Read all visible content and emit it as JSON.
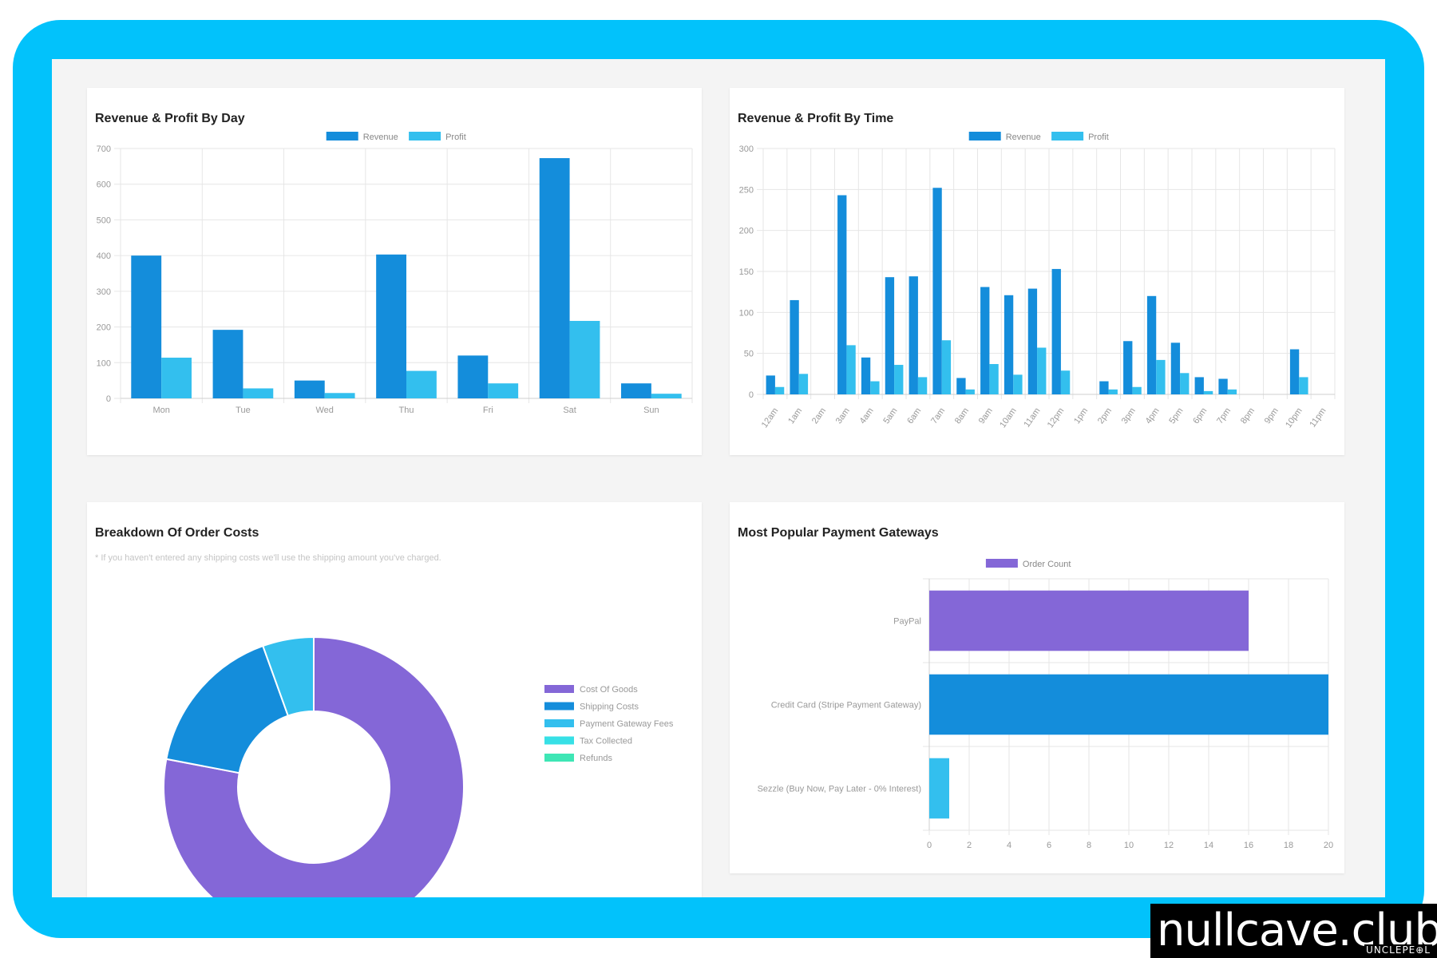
{
  "colors": {
    "frame": "#02c2fb",
    "revenue": "#148ddb",
    "profit": "#33bfee",
    "cost_of_goods": "#8467d7",
    "shipping_costs": "#148ddb",
    "payment_gateway_fees": "#33bfee",
    "tax_collected": "#37e0e6",
    "refunds": "#3ee6b5",
    "paypal": "#8467d7",
    "credit_card": "#148ddb",
    "sezzle": "#33bfee"
  },
  "watermark": {
    "text": "nullcave.club",
    "subtext": "UNCLEPE⊕L"
  },
  "cards": {
    "by_day": {
      "title": "Revenue & Profit By Day"
    },
    "by_time": {
      "title": "Revenue & Profit By Time"
    },
    "order_costs": {
      "title": "Breakdown Of Order Costs",
      "note": "* If you haven't entered any shipping costs we'll use the shipping amount you've charged."
    },
    "gateways": {
      "title": "Most Popular Payment Gateways"
    }
  },
  "chart_data": [
    {
      "id": "by_day",
      "type": "bar",
      "title": "Revenue & Profit By Day",
      "categories": [
        "Mon",
        "Tue",
        "Wed",
        "Thu",
        "Fri",
        "Sat",
        "Sun"
      ],
      "series": [
        {
          "name": "Revenue",
          "values": [
            400,
            192,
            50,
            403,
            120,
            673,
            42
          ]
        },
        {
          "name": "Profit",
          "values": [
            114,
            28,
            15,
            77,
            42,
            217,
            13
          ]
        }
      ],
      "ylim": [
        0,
        700
      ],
      "yticks": [
        0,
        100,
        200,
        300,
        400,
        500,
        600,
        700
      ],
      "legend": "top-center",
      "grid": true
    },
    {
      "id": "by_time",
      "type": "bar",
      "title": "Revenue & Profit By Time",
      "categories": [
        "12am",
        "1am",
        "2am",
        "3am",
        "4am",
        "5am",
        "6am",
        "7am",
        "8am",
        "9am",
        "10am",
        "11am",
        "12pm",
        "1pm",
        "2pm",
        "3pm",
        "4pm",
        "5pm",
        "6pm",
        "7pm",
        "8pm",
        "9pm",
        "10pm",
        "11pm"
      ],
      "series": [
        {
          "name": "Revenue",
          "values": [
            23,
            115,
            0,
            243,
            45,
            143,
            144,
            252,
            20,
            131,
            121,
            129,
            153,
            0,
            16,
            65,
            120,
            63,
            21,
            19,
            0,
            0,
            55,
            0
          ]
        },
        {
          "name": "Profit",
          "values": [
            9,
            25,
            0,
            60,
            16,
            36,
            21,
            66,
            6,
            37,
            24,
            57,
            29,
            0,
            6,
            9,
            42,
            26,
            4,
            6,
            0,
            0,
            21,
            0
          ]
        }
      ],
      "ylim": [
        0,
        300
      ],
      "yticks": [
        0,
        50,
        100,
        150,
        200,
        250,
        300
      ],
      "legend": "top-center",
      "grid": true
    },
    {
      "id": "order_costs",
      "type": "pie",
      "title": "Breakdown Of Order Costs",
      "labels": [
        "Cost Of Goods",
        "Shipping Costs",
        "Payment Gateway Fees",
        "Tax Collected",
        "Refunds"
      ],
      "values": [
        78,
        16.5,
        5.5,
        0,
        0
      ],
      "legend": "right"
    },
    {
      "id": "gateways",
      "type": "bar",
      "orientation": "horizontal",
      "title": "Most Popular Payment Gateways",
      "categories": [
        "PayPal",
        "Credit Card (Stripe Payment Gateway)",
        "Sezzle (Buy Now, Pay Later - 0% Interest)"
      ],
      "series": [
        {
          "name": "Order Count",
          "values": [
            16,
            20,
            1
          ]
        }
      ],
      "xlim": [
        0,
        20
      ],
      "xticks": [
        0,
        2,
        4,
        6,
        8,
        10,
        12,
        14,
        16,
        18,
        20
      ],
      "legend": "top-center",
      "grid": true
    }
  ]
}
